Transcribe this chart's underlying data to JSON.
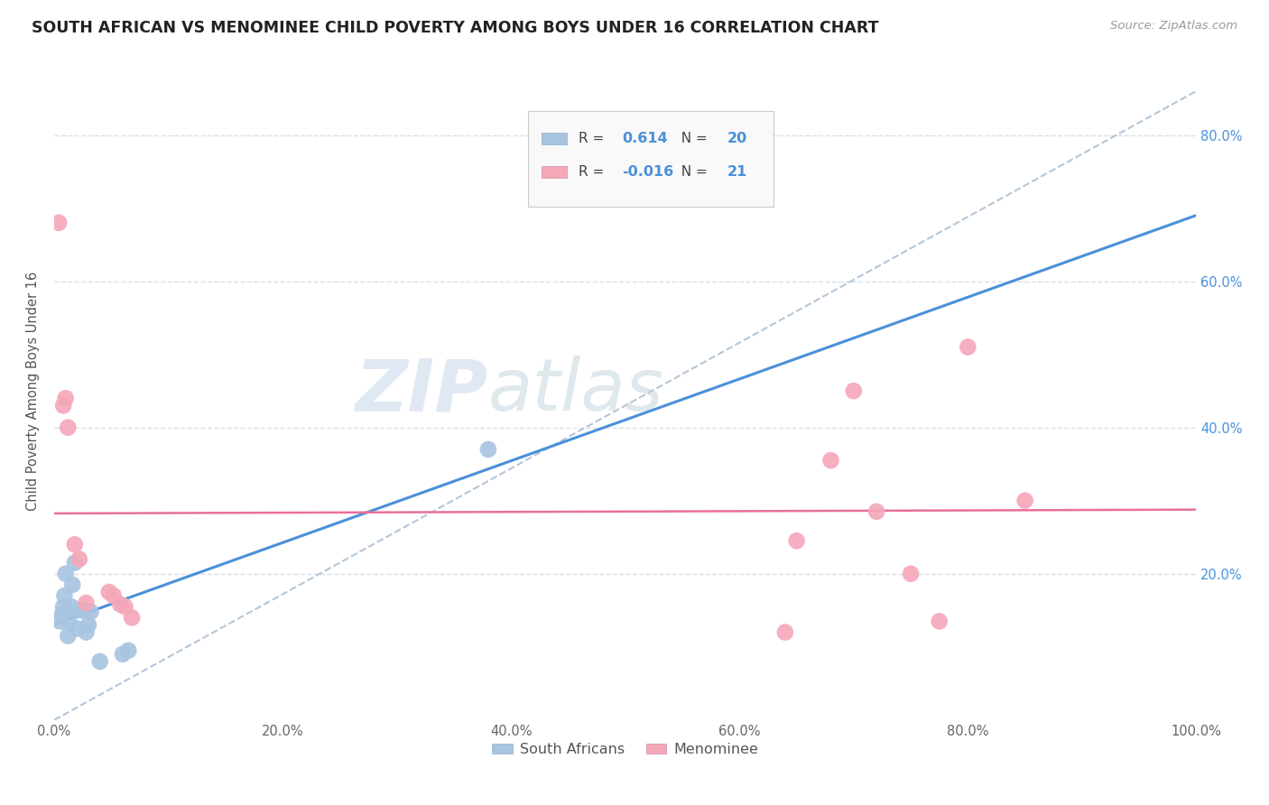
{
  "title": "SOUTH AFRICAN VS MENOMINEE CHILD POVERTY AMONG BOYS UNDER 16 CORRELATION CHART",
  "source": "Source: ZipAtlas.com",
  "ylabel": "Child Poverty Among Boys Under 16",
  "xlim": [
    0.0,
    1.0
  ],
  "ylim": [
    0.0,
    0.9
  ],
  "xticks": [
    0.0,
    0.2,
    0.4,
    0.6,
    0.8,
    1.0
  ],
  "xtick_labels": [
    "0.0%",
    "20.0%",
    "40.0%",
    "60.0%",
    "80.0%",
    "100.0%"
  ],
  "right_ytick_vals": [
    0.2,
    0.4,
    0.6,
    0.8
  ],
  "right_ytick_labels": [
    "20.0%",
    "40.0%",
    "60.0%",
    "80.0%"
  ],
  "south_african_color": "#a8c4e0",
  "menominee_color": "#f4a7b9",
  "trend_sa_color": "#4a90d9",
  "trend_men_color": "#e87199",
  "watermark_color": "#c8d8ea",
  "R_sa": "0.614",
  "N_sa": "20",
  "R_men": "-0.016",
  "N_men": "21",
  "sa_x": [
    0.005,
    0.007,
    0.008,
    0.009,
    0.01,
    0.012,
    0.013,
    0.015,
    0.016,
    0.018,
    0.02,
    0.022,
    0.025,
    0.028,
    0.03,
    0.032,
    0.04,
    0.06,
    0.065,
    0.38
  ],
  "sa_y": [
    0.135,
    0.145,
    0.155,
    0.17,
    0.2,
    0.115,
    0.135,
    0.155,
    0.185,
    0.215,
    0.125,
    0.15,
    0.15,
    0.12,
    0.13,
    0.148,
    0.08,
    0.09,
    0.095,
    0.37
  ],
  "men_x": [
    0.004,
    0.008,
    0.01,
    0.012,
    0.018,
    0.022,
    0.028,
    0.048,
    0.052,
    0.058,
    0.062,
    0.068,
    0.64,
    0.65,
    0.68,
    0.7,
    0.72,
    0.75,
    0.775,
    0.8,
    0.85
  ],
  "men_y": [
    0.68,
    0.43,
    0.44,
    0.4,
    0.24,
    0.22,
    0.16,
    0.175,
    0.17,
    0.158,
    0.155,
    0.14,
    0.12,
    0.245,
    0.355,
    0.45,
    0.285,
    0.2,
    0.135,
    0.51,
    0.3
  ],
  "dashed_line_color": "#a0b8d0",
  "grid_color": "#d8dfe8",
  "legend_text_color": "#4a90d9",
  "legend_label_color": "#444444"
}
